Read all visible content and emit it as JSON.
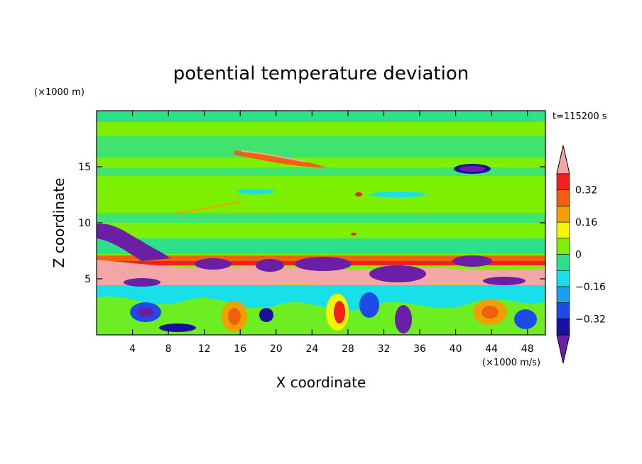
{
  "chart_data": {
    "type": "heatmap",
    "title": "potential temperature deviation",
    "xlabel": "X coordinate",
    "ylabel": "Z coordinate",
    "x_units": "(×1000 m/s)",
    "y_units": "(×1000 m)",
    "time_label": "t=115200 s",
    "xlim": [
      0,
      50
    ],
    "ylim": [
      0,
      20
    ],
    "x_ticks": [
      4,
      8,
      12,
      16,
      20,
      24,
      28,
      32,
      36,
      40,
      44,
      48
    ],
    "y_ticks": [
      5,
      10,
      15
    ],
    "colorbar": {
      "levels": [
        -0.4,
        -0.32,
        -0.24,
        -0.16,
        -0.08,
        0,
        0.08,
        0.16,
        0.24,
        0.32,
        0.4
      ],
      "tick_labels": [
        "0.32",
        "0.16",
        "0",
        "−0.16",
        "−0.32"
      ],
      "tick_values": [
        0.32,
        0.16,
        0,
        -0.16,
        -0.32
      ],
      "colors": [
        "#6a1fa6",
        "#1a0fa0",
        "#1c4be8",
        "#1aa0f0",
        "#19e0e8",
        "#2fe08a",
        "#7cf000",
        "#f5f500",
        "#f0a000",
        "#f06010",
        "#f02020",
        "#f2a6a6"
      ],
      "extend": "both"
    },
    "grid": false,
    "legend": "colorbar-right"
  }
}
